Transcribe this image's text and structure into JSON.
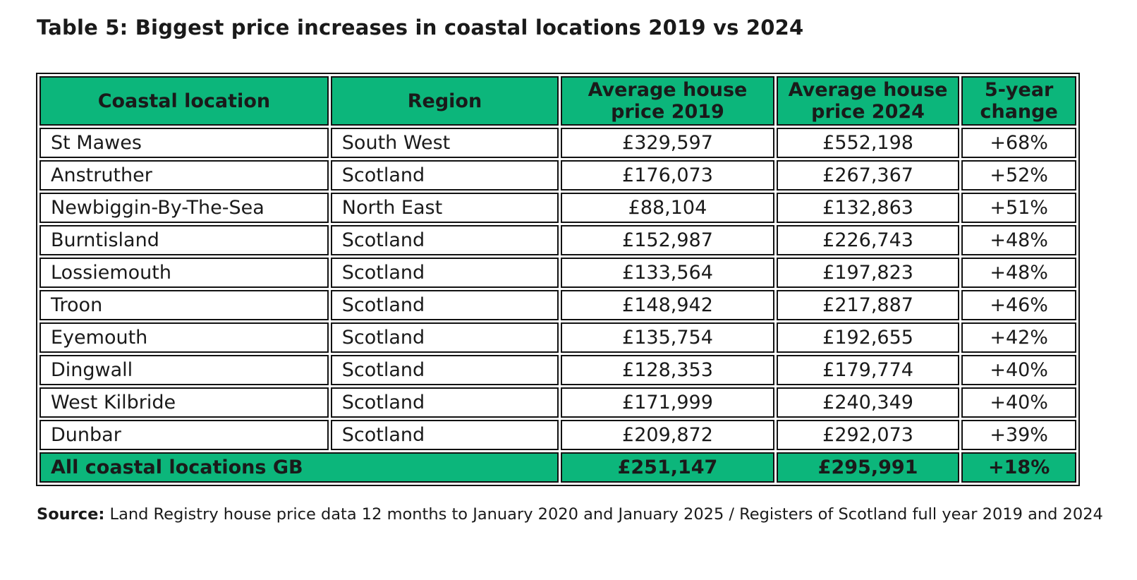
{
  "title": "Table 5: Biggest price increases in coastal locations 2019 vs 2024",
  "table": {
    "headers": [
      "Coastal location",
      "Region",
      "Average house price 2019",
      "Average house price 2024",
      "5-year change"
    ],
    "rows": [
      [
        "St Mawes",
        "South West",
        "£329,597",
        "£552,198",
        "+68%"
      ],
      [
        "Anstruther",
        "Scotland",
        "£176,073",
        "£267,367",
        "+52%"
      ],
      [
        "Newbiggin-By-The-Sea",
        "North East",
        "£88,104",
        "£132,863",
        "+51%"
      ],
      [
        "Burntisland",
        "Scotland",
        "£152,987",
        "£226,743",
        "+48%"
      ],
      [
        "Lossiemouth",
        "Scotland",
        "£133,564",
        "£197,823",
        "+48%"
      ],
      [
        "Troon",
        "Scotland",
        "£148,942",
        "£217,887",
        "+46%"
      ],
      [
        "Eyemouth",
        "Scotland",
        "£135,754",
        "£192,655",
        "+42%"
      ],
      [
        "Dingwall",
        "Scotland",
        "£128,353",
        "£179,774",
        "+40%"
      ],
      [
        "West Kilbride",
        "Scotland",
        "£171,999",
        "£240,349",
        "+40%"
      ],
      [
        "Dunbar",
        "Scotland",
        "£209,872",
        "£292,073",
        "+39%"
      ]
    ],
    "total": {
      "label": "All coastal locations GB",
      "price_2019": "£251,147",
      "price_2024": "£295,991",
      "change": "+18%"
    }
  },
  "source": {
    "label": "Source:",
    "text": " Land Registry house price data 12 months to January 2020 and January 2025 / Registers of Scotland full year 2019 and 2024"
  },
  "colors": {
    "header_fill": "#0cb67b",
    "border": "#111111"
  }
}
